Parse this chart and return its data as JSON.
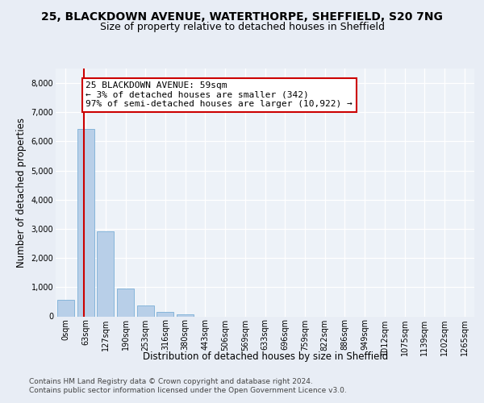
{
  "title_line1": "25, BLACKDOWN AVENUE, WATERTHORPE, SHEFFIELD, S20 7NG",
  "title_line2": "Size of property relative to detached houses in Sheffield",
  "xlabel": "Distribution of detached houses by size in Sheffield",
  "ylabel": "Number of detached properties",
  "bar_labels": [
    "0sqm",
    "63sqm",
    "127sqm",
    "190sqm",
    "253sqm",
    "316sqm",
    "380sqm",
    "443sqm",
    "506sqm",
    "569sqm",
    "633sqm",
    "696sqm",
    "759sqm",
    "822sqm",
    "886sqm",
    "949sqm",
    "1012sqm",
    "1075sqm",
    "1139sqm",
    "1202sqm",
    "1265sqm"
  ],
  "bar_values": [
    560,
    6430,
    2910,
    965,
    360,
    140,
    70,
    0,
    0,
    0,
    0,
    0,
    0,
    0,
    0,
    0,
    0,
    0,
    0,
    0,
    0
  ],
  "bar_color": "#b8cfe8",
  "bar_edge_color": "#7aaed6",
  "annotation_text": "25 BLACKDOWN AVENUE: 59sqm\n← 3% of detached houses are smaller (342)\n97% of semi-detached houses are larger (10,922) →",
  "annotation_box_color": "#ffffff",
  "annotation_border_color": "#cc0000",
  "vline_color": "#cc0000",
  "vline_pos": 0.935,
  "ylim": [
    0,
    8500
  ],
  "yticks": [
    0,
    1000,
    2000,
    3000,
    4000,
    5000,
    6000,
    7000,
    8000
  ],
  "bg_color": "#e8edf5",
  "plot_bg_color": "#edf2f8",
  "footer_line1": "Contains HM Land Registry data © Crown copyright and database right 2024.",
  "footer_line2": "Contains public sector information licensed under the Open Government Licence v3.0.",
  "title_fontsize": 10,
  "subtitle_fontsize": 9,
  "axis_label_fontsize": 8.5,
  "tick_fontsize": 7,
  "annotation_fontsize": 8,
  "footer_fontsize": 6.5
}
